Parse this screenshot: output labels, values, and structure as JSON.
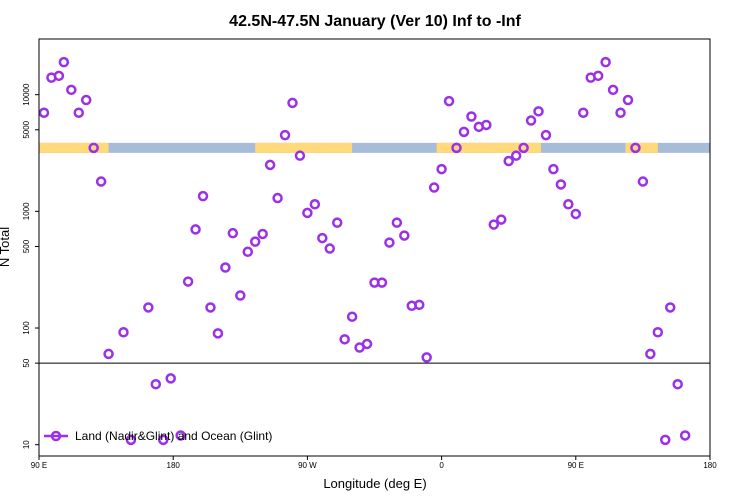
{
  "chart_data": {
    "type": "scatter",
    "title": "42.5N-47.5N January (Ver 10)   Inf to -Inf",
    "xlabel": "Longitude (deg E)",
    "ylabel": "N Total",
    "y_scale": "log",
    "xlim": [
      -90,
      180
    ],
    "ylim": [
      8,
      30000
    ],
    "x_ticks": [
      {
        "value": -90,
        "label": "90 E"
      },
      {
        "value": -36,
        "label": "180"
      },
      {
        "value": 18,
        "label": "90 W"
      },
      {
        "value": 72,
        "label": "0"
      },
      {
        "value": 126,
        "label": "90 E"
      },
      {
        "value": 180,
        "label": "180"
      }
    ],
    "y_ticks": [
      {
        "value": 10,
        "label": "10"
      },
      {
        "value": 50,
        "label": "50"
      },
      {
        "value": 100,
        "label": "100"
      },
      {
        "value": 500,
        "label": "500"
      },
      {
        "value": 1000,
        "label": "1000"
      },
      {
        "value": 5000,
        "label": "5000"
      },
      {
        "value": 10000,
        "label": "10000"
      }
    ],
    "reference_line": 50,
    "colors": {
      "marker": "#9b30e8",
      "land": "#ffd97a",
      "ocean": "#a7bcd8",
      "axis": "#000000"
    },
    "land_ocean_strip": {
      "y_value": 3500,
      "land_segments": [
        [
          -90,
          -62
        ],
        [
          -3,
          36
        ],
        [
          70,
          112
        ],
        [
          146,
          159
        ]
      ]
    },
    "series": [
      {
        "name": "Land (Nadir&Glint) and Ocean (Glint)",
        "x": [
          -88,
          -85,
          -82,
          -80,
          -77,
          -74,
          -71,
          -68,
          -65,
          -62,
          -56,
          -53,
          -46,
          -43,
          -40,
          -37,
          -33,
          -30,
          -27,
          -24,
          -21,
          -18,
          -15,
          -12,
          -9,
          -6,
          -3,
          0,
          3,
          6,
          9,
          12,
          15,
          18,
          21,
          24,
          27,
          30,
          33,
          36,
          39,
          42,
          45,
          48,
          51,
          54,
          57,
          60,
          63,
          66,
          69,
          72,
          75,
          78,
          81,
          84,
          87,
          90,
          93,
          96,
          99,
          102,
          105,
          108,
          111,
          114,
          117,
          120,
          123,
          126,
          129,
          132,
          135,
          138,
          141,
          144,
          147,
          150,
          153,
          156,
          159,
          162,
          164,
          167,
          170
        ],
        "y": [
          7000,
          14000,
          14500,
          19000,
          11000,
          7000,
          9000,
          3500,
          1800,
          60,
          92,
          11,
          150,
          33,
          11,
          37,
          12,
          250,
          700,
          1350,
          150,
          90,
          330,
          650,
          190,
          450,
          550,
          640,
          2500,
          1300,
          4500,
          8500,
          3000,
          970,
          1150,
          590,
          480,
          800,
          80,
          125,
          68,
          73,
          245,
          245,
          540,
          800,
          620,
          155,
          158,
          56,
          1600,
          2300,
          8800,
          3500,
          4800,
          6500,
          5300,
          5500,
          770,
          850,
          2700,
          3000,
          3500,
          6000,
          7200,
          4500,
          2300,
          1700,
          1150,
          950,
          7000,
          14000,
          14500,
          19000,
          11000,
          7000,
          9000,
          3500,
          1800,
          60,
          92,
          11,
          150,
          33,
          12
        ]
      }
    ]
  }
}
